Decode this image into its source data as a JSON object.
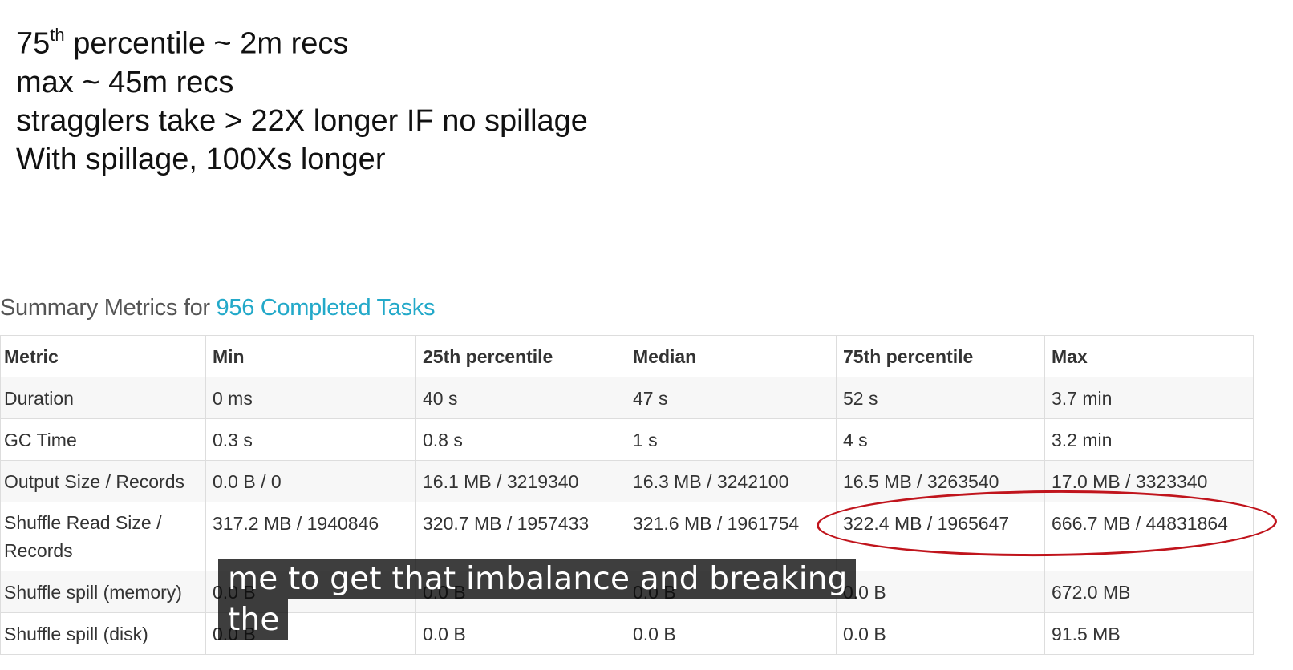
{
  "notes": [
    {
      "prefix": "75",
      "sup": "th",
      "text": " percentile ~ 2m recs"
    },
    {
      "text": "max ~ 45m recs"
    },
    {
      "text": "stragglers take > 22X longer IF no spillage"
    },
    {
      "text": "With spillage, 100Xs longer"
    }
  ],
  "summary": {
    "heading_prefix": "Summary Metrics for ",
    "heading_link": "956 Completed Tasks"
  },
  "table": {
    "headers": [
      "Metric",
      "Min",
      "25th percentile",
      "Median",
      "75th percentile",
      "Max"
    ],
    "rows": [
      [
        "Duration",
        "0 ms",
        "40 s",
        "47 s",
        "52 s",
        "3.7 min"
      ],
      [
        "GC Time",
        "0.3 s",
        "0.8 s",
        "1 s",
        "4 s",
        "3.2 min"
      ],
      [
        "Output Size / Records",
        "0.0 B / 0",
        "16.1 MB / 3219340",
        "16.3 MB / 3242100",
        "16.5 MB / 3263540",
        "17.0 MB / 3323340"
      ],
      [
        "Shuffle Read Size / Records",
        "317.2 MB / 1940846",
        "320.7 MB / 1957433",
        "321.6 MB / 1961754",
        "322.4 MB / 1965647",
        "666.7 MB / 44831864"
      ],
      [
        "Shuffle spill (memory)",
        "0.0 B",
        "0.0 B",
        "0.0 B",
        "0.0 B",
        "672.0 MB"
      ],
      [
        "Shuffle spill (disk)",
        "0.0 B",
        "0.0 B",
        "0.0 B",
        "0.0 B",
        "91.5 MB"
      ]
    ]
  },
  "annotation": {
    "ellipse_color": "#c0141c"
  },
  "caption": {
    "lines": [
      "me to get that imbalance and breaking",
      "the"
    ]
  }
}
